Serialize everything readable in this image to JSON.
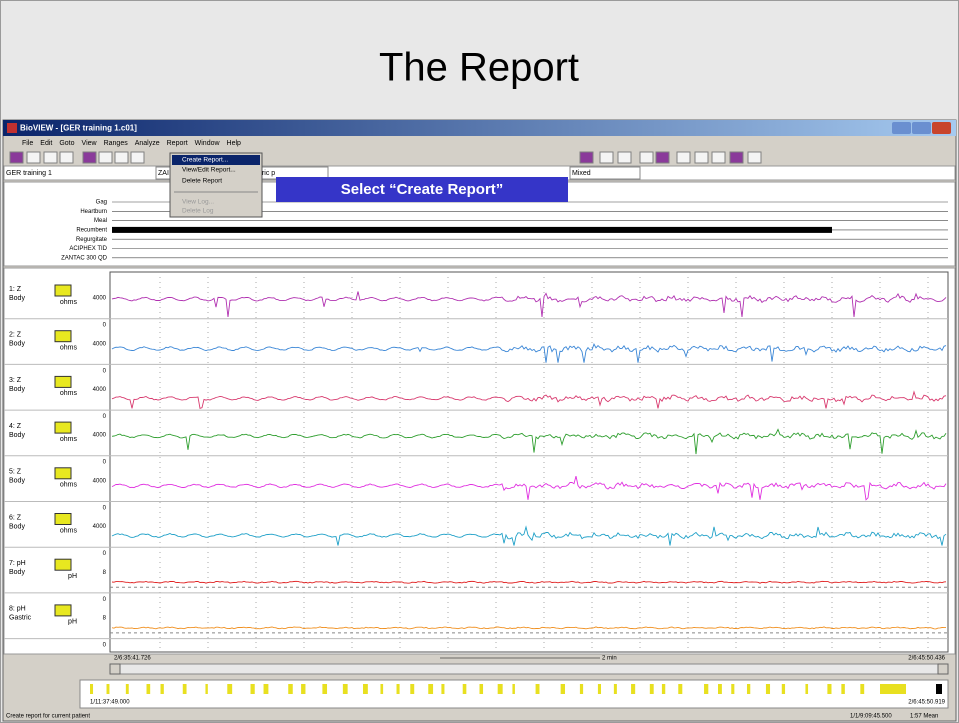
{
  "slide_title": "The Report",
  "window": {
    "title": "BioVIEW - [GER training 1.c01]",
    "menu": [
      "File",
      "Edit",
      "Goto",
      "View",
      "Ranges",
      "Analyze",
      "Report",
      "Window",
      "Help"
    ],
    "report_menu": [
      "Create Report...",
      "View/Edit Report...",
      "Delete Report",
      "View Log...",
      "Delete Log"
    ],
    "study": "GER training 1",
    "fields": [
      "ZAI",
      "tric p",
      "Mixed"
    ]
  },
  "callout": "Select “Create Report”",
  "events": [
    "Gag",
    "Heartburn",
    "Meal",
    "Recumbent",
    "Regurgitate",
    "ACIPHEX TID",
    "ZANTAC 300 QD"
  ],
  "channels": [
    {
      "id": "1: Z",
      "site": "Body",
      "unit": "ohms",
      "ticks": [
        "4000",
        "0"
      ],
      "color": "#b030b0"
    },
    {
      "id": "2: Z",
      "site": "Body",
      "unit": "ohms",
      "ticks": [
        "4000",
        "0"
      ],
      "color": "#3a86d6"
    },
    {
      "id": "3: Z",
      "site": "Body",
      "unit": "ohms",
      "ticks": [
        "4000",
        "0"
      ],
      "color": "#d83a6e"
    },
    {
      "id": "4: Z",
      "site": "Body",
      "unit": "ohms",
      "ticks": [
        "4000",
        "0"
      ],
      "color": "#2e9e2e"
    },
    {
      "id": "5: Z",
      "site": "Body",
      "unit": "ohms",
      "ticks": [
        "4000",
        "0"
      ],
      "color": "#e030e0"
    },
    {
      "id": "6: Z",
      "site": "Body",
      "unit": "ohms",
      "ticks": [
        "4000",
        "0"
      ],
      "color": "#1fa0c8"
    },
    {
      "id": "7: pH",
      "site": "Body",
      "unit": "pH",
      "ticks": [
        "8",
        "0"
      ],
      "color": "#e02020"
    },
    {
      "id": "8: pH",
      "site": "Gastric",
      "unit": "pH",
      "ticks": [
        "8",
        "0"
      ],
      "color": "#f09020"
    }
  ],
  "time": {
    "start": "2/6:35:41.726",
    "span": "2 min",
    "end": "2/6:45:50.436",
    "overview_start": "1/11:37:49.000",
    "overview_end": "2/6:45:50.919"
  },
  "status": {
    "message": "Create report for current patient",
    "time": "1/1/9:09:45.500",
    "mean": "1:57 Mean"
  }
}
